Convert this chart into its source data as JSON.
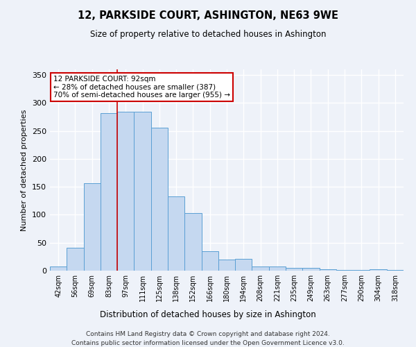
{
  "title": "12, PARKSIDE COURT, ASHINGTON, NE63 9WE",
  "subtitle": "Size of property relative to detached houses in Ashington",
  "xlabel": "Distribution of detached houses by size in Ashington",
  "ylabel": "Number of detached properties",
  "categories": [
    "42sqm",
    "56sqm",
    "69sqm",
    "83sqm",
    "97sqm",
    "111sqm",
    "125sqm",
    "138sqm",
    "152sqm",
    "166sqm",
    "180sqm",
    "194sqm",
    "208sqm",
    "221sqm",
    "235sqm",
    "249sqm",
    "263sqm",
    "277sqm",
    "290sqm",
    "304sqm",
    "318sqm"
  ],
  "values": [
    8,
    41,
    157,
    282,
    284,
    284,
    256,
    133,
    103,
    35,
    20,
    21,
    8,
    7,
    5,
    5,
    3,
    1,
    1,
    3,
    1
  ],
  "bar_color": "#c5d8f0",
  "bar_edge_color": "#5a9fd4",
  "vline_x": 3.5,
  "vline_color": "#cc0000",
  "annotation_text": "12 PARKSIDE COURT: 92sqm\n← 28% of detached houses are smaller (387)\n70% of semi-detached houses are larger (955) →",
  "annotation_box_color": "#ffffff",
  "annotation_box_edge_color": "#cc0000",
  "background_color": "#eef2f9",
  "grid_color": "#ffffff",
  "footer_line1": "Contains HM Land Registry data © Crown copyright and database right 2024.",
  "footer_line2": "Contains public sector information licensed under the Open Government Licence v3.0.",
  "ylim": [
    0,
    360
  ],
  "yticks": [
    0,
    50,
    100,
    150,
    200,
    250,
    300,
    350
  ]
}
